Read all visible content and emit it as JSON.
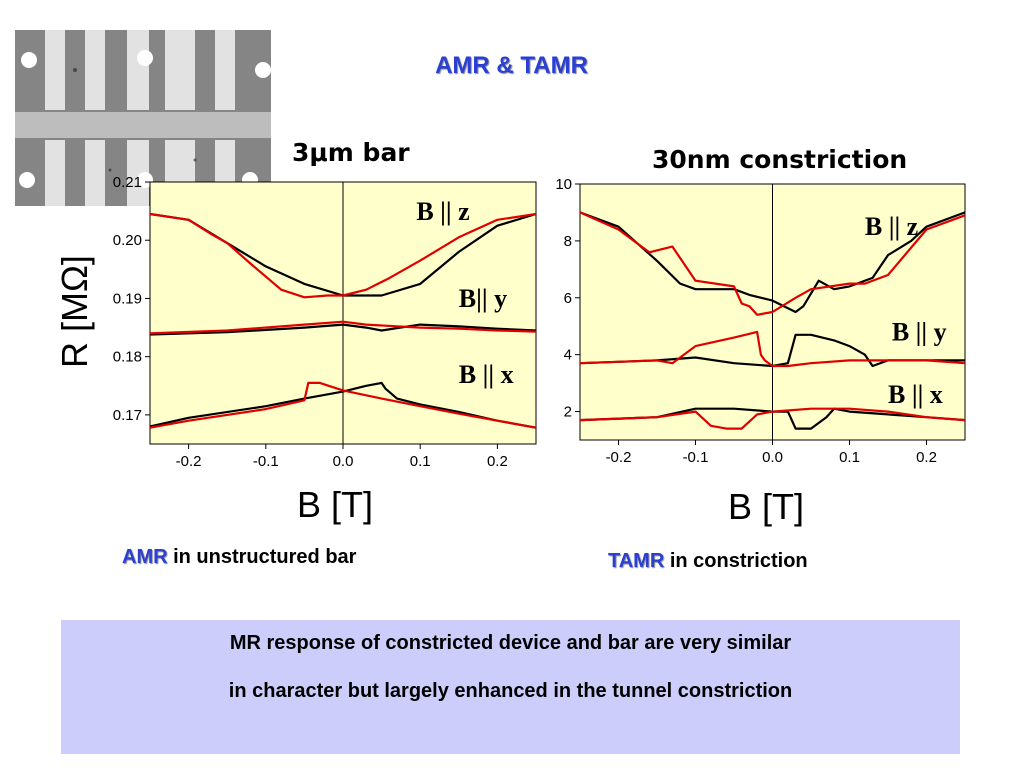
{
  "title": "AMR & TAMR",
  "colors": {
    "title": "#2b3fd1",
    "plot_bg": "#ffffcc",
    "series_black": "#000000",
    "series_red": "#e00000",
    "box_bg": "#cdcdfb"
  },
  "micrograph": {
    "icon": "sem-micrograph-image"
  },
  "caption_left": {
    "key": "AMR",
    "rest": " in unstructured bar"
  },
  "caption_right": {
    "key": "TAMR",
    "rest": " in constriction"
  },
  "box": {
    "line1": "MR response of constricted device and bar are very similar",
    "line2": "in character but largely enhanced in the tunnel constriction"
  },
  "chart_data": [
    {
      "type": "line",
      "title": "3μm bar",
      "xlabel": "B [T]",
      "ylabel": "R [MΩ]",
      "xlim": [
        -0.25,
        0.25
      ],
      "ylim": [
        0.165,
        0.21
      ],
      "xticks": [
        "-0.2",
        "-0.1",
        "0.0",
        "0.1",
        "0.2"
      ],
      "xtick_values": [
        -0.2,
        -0.1,
        0.0,
        0.1,
        0.2
      ],
      "yticks": [
        "0.17",
        "0.18",
        "0.19",
        "0.20",
        "0.21"
      ],
      "ytick_values": [
        0.17,
        0.18,
        0.19,
        0.2,
        0.21
      ],
      "annotations": [
        {
          "text": "B || z",
          "x": 0.095,
          "y": 0.2035
        },
        {
          "text": "B|| y",
          "x": 0.15,
          "y": 0.1885
        },
        {
          "text": "B || x",
          "x": 0.15,
          "y": 0.1755
        }
      ],
      "series": [
        {
          "color": "black",
          "x": [
            -0.25,
            -0.2,
            -0.15,
            -0.1,
            -0.05,
            0.0,
            0.05,
            0.1,
            0.15,
            0.2,
            0.25
          ],
          "y": [
            0.2045,
            0.2035,
            0.1995,
            0.1955,
            0.1925,
            0.1905,
            0.1905,
            0.1925,
            0.198,
            0.2025,
            0.2045
          ]
        },
        {
          "color": "red",
          "x": [
            -0.25,
            -0.2,
            -0.17,
            -0.15,
            -0.12,
            -0.08,
            -0.05,
            -0.02,
            0.0,
            0.03,
            0.06,
            0.1,
            0.15,
            0.2,
            0.25
          ],
          "y": [
            0.2045,
            0.2035,
            0.201,
            0.1995,
            0.196,
            0.1915,
            0.1902,
            0.1905,
            0.1905,
            0.1915,
            0.1935,
            0.1965,
            0.2005,
            0.2035,
            0.2045
          ]
        },
        {
          "color": "black",
          "x": [
            -0.25,
            -0.15,
            -0.05,
            0.0,
            0.03,
            0.05,
            0.1,
            0.15,
            0.2,
            0.25
          ],
          "y": [
            0.1838,
            0.1842,
            0.185,
            0.1855,
            0.185,
            0.1845,
            0.1855,
            0.1852,
            0.1848,
            0.1845
          ]
        },
        {
          "color": "red",
          "x": [
            -0.25,
            -0.15,
            -0.05,
            0.0,
            0.03,
            0.1,
            0.15,
            0.2,
            0.25
          ],
          "y": [
            0.184,
            0.1845,
            0.1855,
            0.186,
            0.1855,
            0.185,
            0.1848,
            0.1845,
            0.1843
          ]
        },
        {
          "color": "black",
          "x": [
            -0.25,
            -0.2,
            -0.1,
            -0.05,
            0.0,
            0.03,
            0.05,
            0.055,
            0.07,
            0.1,
            0.15,
            0.2,
            0.25
          ],
          "y": [
            0.168,
            0.1695,
            0.1715,
            0.1728,
            0.174,
            0.175,
            0.1755,
            0.1745,
            0.1728,
            0.1718,
            0.1705,
            0.169,
            0.1678
          ]
        },
        {
          "color": "red",
          "x": [
            -0.25,
            -0.2,
            -0.1,
            -0.05,
            -0.045,
            -0.03,
            0.0,
            0.05,
            0.1,
            0.15,
            0.2,
            0.25
          ],
          "y": [
            0.1678,
            0.169,
            0.171,
            0.1725,
            0.1755,
            0.1755,
            0.1742,
            0.1728,
            0.1715,
            0.1702,
            0.169,
            0.1678
          ]
        }
      ]
    },
    {
      "type": "line",
      "title": "30nm constriction",
      "xlabel": "B [T]",
      "xlim": [
        -0.25,
        0.25
      ],
      "ylim": [
        1,
        10
      ],
      "xticks": [
        "-0.2",
        "-0.1",
        "0.0",
        "0.1",
        "0.2"
      ],
      "xtick_values": [
        -0.2,
        -0.1,
        0.0,
        0.1,
        0.2
      ],
      "yticks": [
        "2",
        "4",
        "6",
        "8",
        "10"
      ],
      "ytick_values": [
        2,
        4,
        6,
        8,
        10
      ],
      "annotations": [
        {
          "text": "B || z",
          "x": 0.12,
          "y": 8.2
        },
        {
          "text": "B || y",
          "x": 0.155,
          "y": 4.5
        },
        {
          "text": "B || x",
          "x": 0.15,
          "y": 2.3
        }
      ],
      "series": [
        {
          "color": "black",
          "x": [
            -0.25,
            -0.2,
            -0.15,
            -0.12,
            -0.1,
            -0.05,
            -0.03,
            0.0,
            0.03,
            0.04,
            0.06,
            0.08,
            0.1,
            0.13,
            0.15,
            0.18,
            0.2,
            0.25
          ],
          "y": [
            9.0,
            8.5,
            7.3,
            6.5,
            6.3,
            6.3,
            6.1,
            5.9,
            5.5,
            5.7,
            6.6,
            6.3,
            6.4,
            6.7,
            7.5,
            8.0,
            8.5,
            9.0
          ]
        },
        {
          "color": "red",
          "x": [
            -0.25,
            -0.2,
            -0.16,
            -0.13,
            -0.1,
            -0.05,
            -0.04,
            -0.03,
            -0.02,
            0.0,
            0.03,
            0.05,
            0.1,
            0.12,
            0.15,
            0.2,
            0.25
          ],
          "y": [
            9.0,
            8.4,
            7.6,
            7.8,
            6.6,
            6.4,
            5.8,
            5.7,
            5.4,
            5.5,
            6.0,
            6.3,
            6.5,
            6.5,
            6.8,
            8.4,
            8.9
          ]
        },
        {
          "color": "black",
          "x": [
            -0.25,
            -0.15,
            -0.1,
            -0.05,
            0.0,
            0.02,
            0.03,
            0.05,
            0.08,
            0.1,
            0.12,
            0.13,
            0.15,
            0.2,
            0.25
          ],
          "y": [
            3.7,
            3.8,
            3.9,
            3.7,
            3.6,
            3.7,
            4.7,
            4.7,
            4.5,
            4.3,
            4.0,
            3.6,
            3.8,
            3.8,
            3.8
          ]
        },
        {
          "color": "red",
          "x": [
            -0.25,
            -0.15,
            -0.13,
            -0.1,
            -0.05,
            -0.02,
            -0.015,
            -0.01,
            0.0,
            0.02,
            0.05,
            0.1,
            0.15,
            0.2,
            0.25
          ],
          "y": [
            3.7,
            3.8,
            3.7,
            4.3,
            4.6,
            4.8,
            4.0,
            3.8,
            3.6,
            3.6,
            3.7,
            3.8,
            3.8,
            3.8,
            3.7
          ]
        },
        {
          "color": "black",
          "x": [
            -0.25,
            -0.15,
            -0.1,
            -0.05,
            0.0,
            0.02,
            0.03,
            0.05,
            0.07,
            0.08,
            0.1,
            0.15,
            0.2,
            0.25
          ],
          "y": [
            1.7,
            1.8,
            2.1,
            2.1,
            2.0,
            2.0,
            1.4,
            1.4,
            1.8,
            2.1,
            2.0,
            1.9,
            1.8,
            1.7
          ]
        },
        {
          "color": "red",
          "x": [
            -0.25,
            -0.15,
            -0.1,
            -0.08,
            -0.06,
            -0.04,
            -0.02,
            0.0,
            0.05,
            0.1,
            0.15,
            0.2,
            0.25
          ],
          "y": [
            1.7,
            1.8,
            2.0,
            1.5,
            1.4,
            1.4,
            1.9,
            2.0,
            2.1,
            2.1,
            2.0,
            1.8,
            1.7
          ]
        }
      ]
    }
  ]
}
